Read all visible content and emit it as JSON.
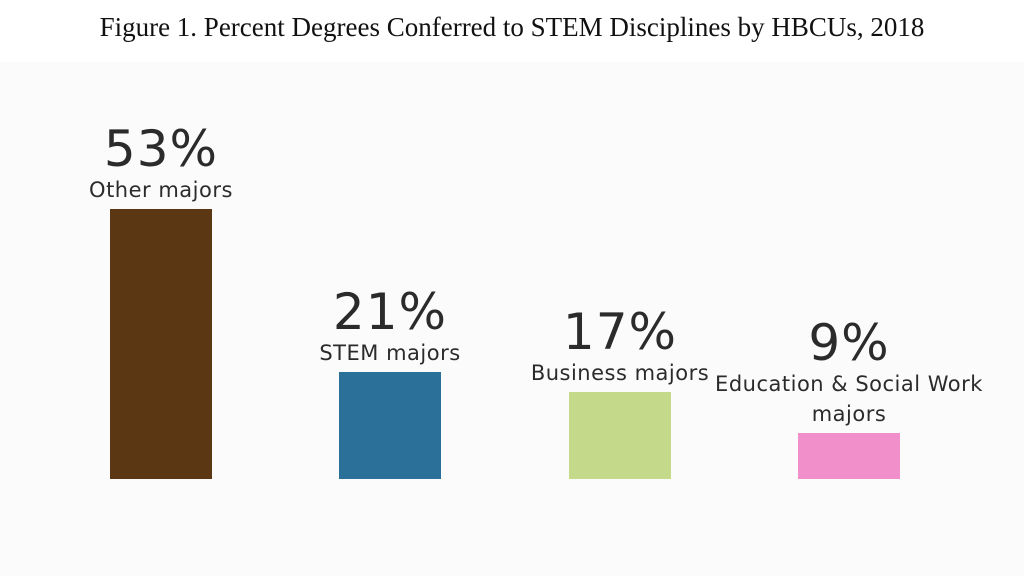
{
  "chart_data": {
    "type": "bar",
    "title": "Figure 1. Percent Degrees Conferred to STEM Disciplines by HBCUs, 2018",
    "categories": [
      "Other majors",
      "STEM majors",
      "Business majors",
      "Education & Social Work majors"
    ],
    "values": [
      53,
      21,
      17,
      9
    ],
    "value_labels": [
      "53%",
      "21%",
      "17%",
      "9%"
    ],
    "colors": [
      "#5c3714",
      "#2b7099",
      "#c5d98a",
      "#f08fca"
    ]
  }
}
